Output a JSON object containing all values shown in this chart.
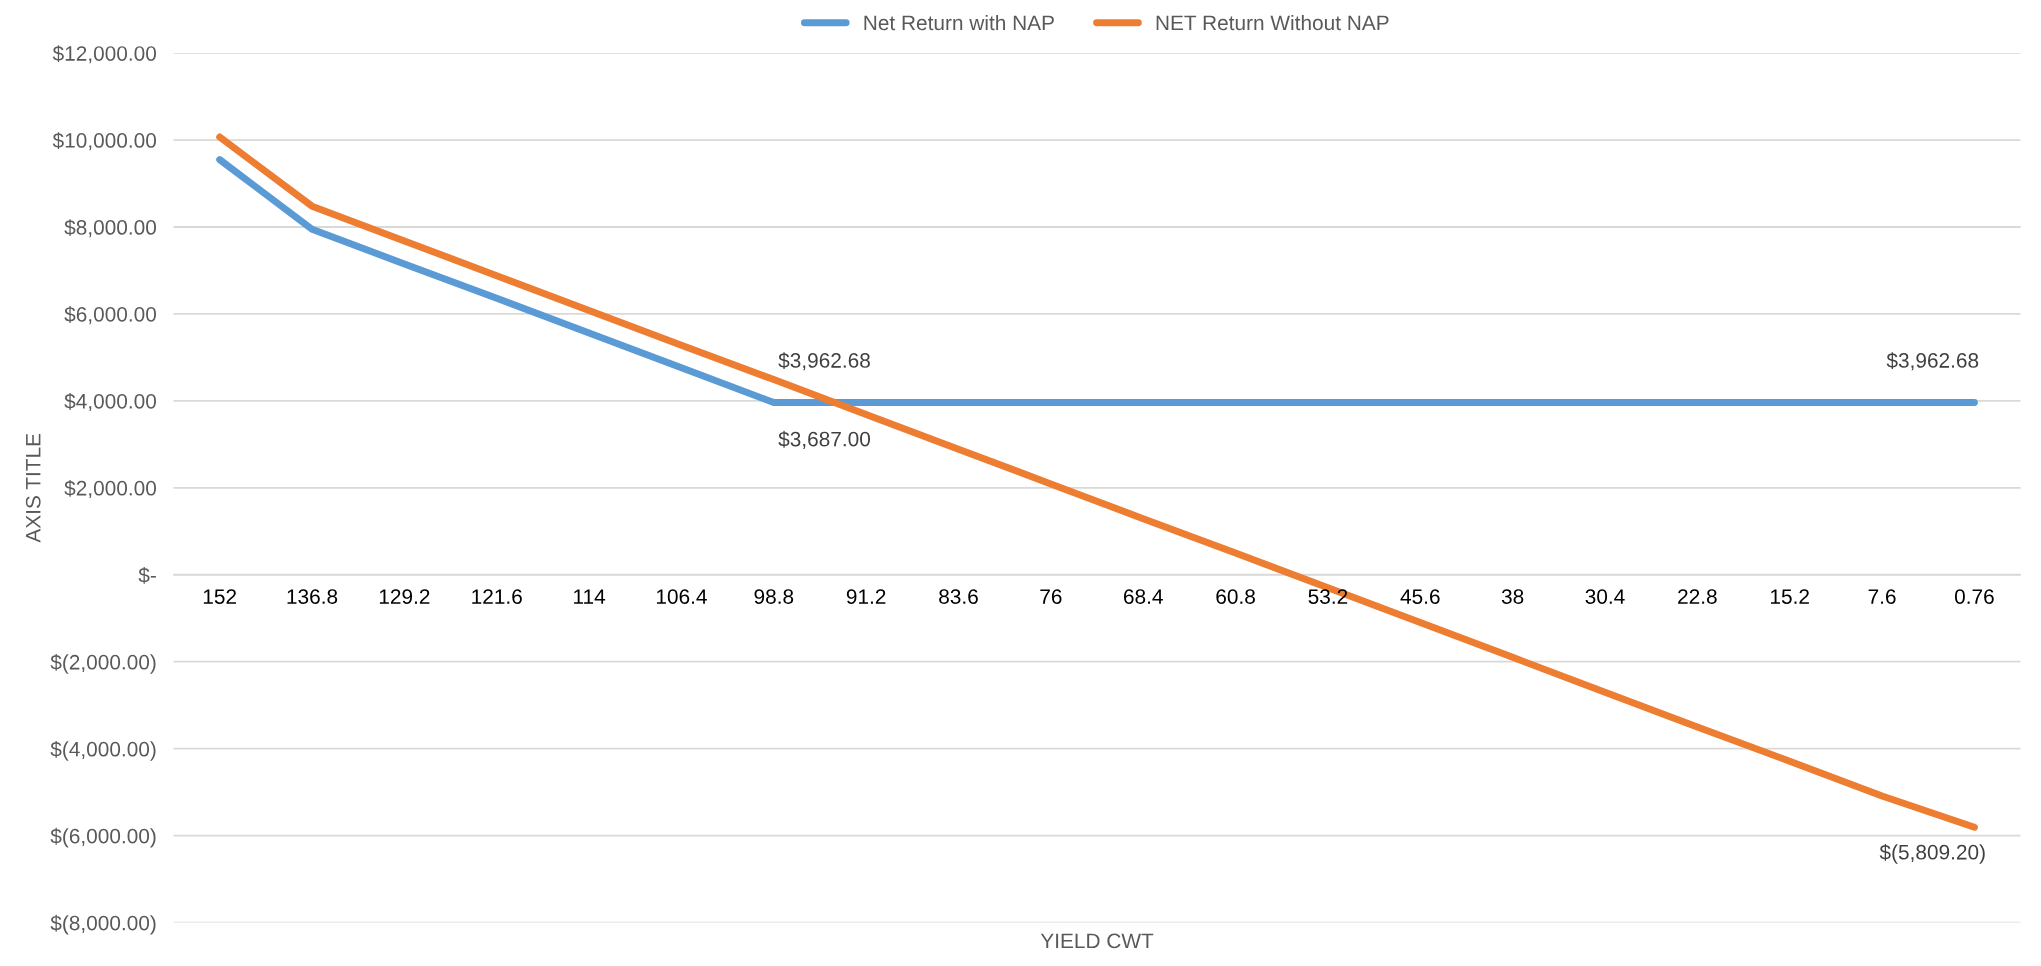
{
  "chart_data": {
    "type": "line",
    "xlabel": "YIELD CWT",
    "ylabel": "AXIS TITLE",
    "categories": [
      "152",
      "136.8",
      "129.2",
      "121.6",
      "114",
      "106.4",
      "98.8",
      "91.2",
      "83.6",
      "76",
      "68.4",
      "60.8",
      "53.2",
      "45.6",
      "38",
      "30.4",
      "22.8",
      "15.2",
      "7.6",
      "0.76"
    ],
    "series": [
      {
        "name": "Net Return with NAP",
        "color": "#5b9bd5",
        "values": [
          9550,
          7950,
          7150,
          6360,
          5560,
          4760,
          3962.68,
          3962.68,
          3962.68,
          3962.68,
          3962.68,
          3962.68,
          3962.68,
          3962.68,
          3962.68,
          3962.68,
          3962.68,
          3962.68,
          3962.68,
          3962.68
        ],
        "value_labels": [
          null,
          null,
          null,
          null,
          null,
          null,
          null,
          "$3,962.68",
          null,
          null,
          null,
          null,
          null,
          null,
          null,
          null,
          null,
          null,
          null,
          "$3,962.68"
        ]
      },
      {
        "name": "NET Return Without NAP",
        "color": "#ed7d31",
        "values": [
          10070,
          8480,
          7680,
          6880,
          6080,
          5280,
          4490,
          3687,
          2890,
          2090,
          1290,
          500,
          -300,
          -1100,
          -1900,
          -2700,
          -3500,
          -4290,
          -5090,
          -5809.2
        ],
        "value_labels": [
          null,
          null,
          null,
          null,
          null,
          null,
          null,
          "$3,687.00",
          null,
          null,
          null,
          null,
          null,
          null,
          null,
          null,
          null,
          null,
          null,
          "$(5,809.20)"
        ]
      }
    ],
    "ylim": [
      -8000,
      12000
    ],
    "yticks": [
      {
        "value": -8000,
        "label": "$(8,000.00)"
      },
      {
        "value": -6000,
        "label": "$(6,000.00)"
      },
      {
        "value": -4000,
        "label": "$(4,000.00)"
      },
      {
        "value": -2000,
        "label": "$(2,000.00)"
      },
      {
        "value": 0,
        "label": "$-"
      },
      {
        "value": 2000,
        "label": "$2,000.00"
      },
      {
        "value": 4000,
        "label": "$4,000.00"
      },
      {
        "value": 6000,
        "label": "$6,000.00"
      },
      {
        "value": 8000,
        "label": "$8,000.00"
      },
      {
        "value": 10000,
        "label": "$10,000.00"
      },
      {
        "value": 12000,
        "label": "$12,000.00"
      }
    ],
    "grid": "y",
    "legend": "top",
    "marker": "none",
    "line_style": "solid"
  }
}
